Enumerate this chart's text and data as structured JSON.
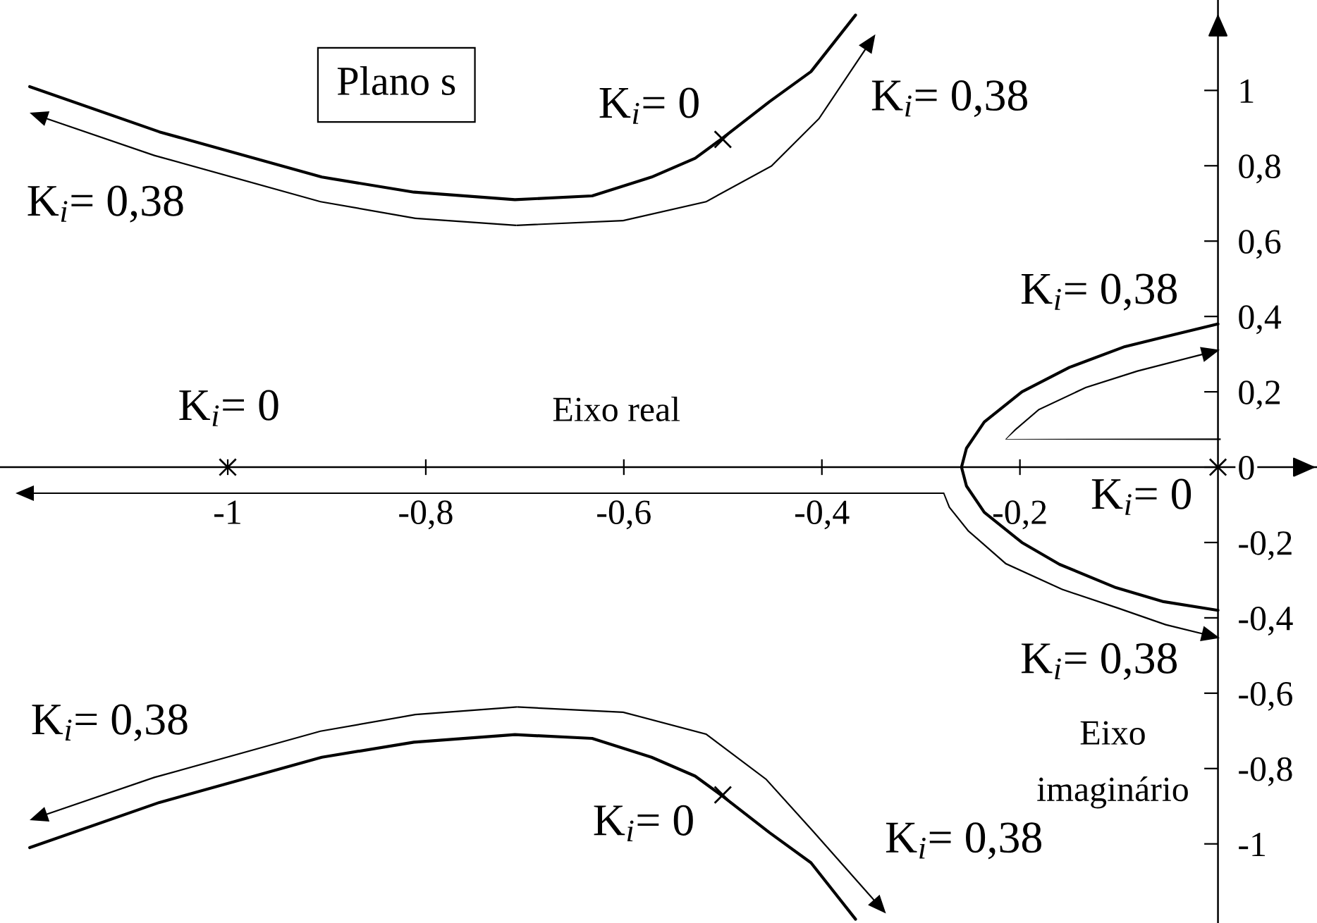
{
  "chart_data": {
    "type": "line",
    "title": "Plano s",
    "xlabel": "Eixo real",
    "ylabel": "Eixo\nimaginário",
    "xlim": [
      -1.23,
      0.1
    ],
    "ylim": [
      -1.21,
      1.24
    ],
    "xticks": [
      -1,
      {
        "value": -0.8,
        "label": "-0,8"
      },
      {
        "value": -0.6,
        "label": "-0,6"
      },
      {
        "value": -0.4,
        "label": "-0,4"
      },
      {
        "value": -0.2,
        "label": "-0,2"
      }
    ],
    "yticks": [
      -1,
      {
        "value": -0.8,
        "label": "-0,8"
      },
      {
        "value": -0.6,
        "label": "-0,6"
      },
      {
        "value": -0.4,
        "label": "-0,4"
      },
      {
        "value": -0.2,
        "label": "-0,2"
      },
      0,
      {
        "value": 0.2,
        "label": "0,2"
      },
      {
        "value": 0.4,
        "label": "0,4"
      },
      {
        "value": 0.6,
        "label": "0,6"
      },
      {
        "value": 0.8,
        "label": "0,8"
      },
      1
    ],
    "series": [
      {
        "color": "#000000",
        "x": [
          -1.2,
          -1.069,
          -0.905,
          -0.812,
          -0.71,
          -0.632,
          -0.572,
          -0.528,
          -0.502,
          -0.453,
          -0.411,
          -0.366
        ],
        "values": [
          1.01,
          0.89,
          0.77,
          0.73,
          0.71,
          0.72,
          0.77,
          0.82,
          0.87,
          0.97,
          1.05,
          1.2
        ]
      },
      {
        "color": "#000000",
        "x": [
          0,
          -0.055,
          -0.094,
          -0.15,
          -0.198,
          -0.236,
          -0.254,
          -0.259,
          -0.254,
          -0.236,
          -0.198,
          -0.16,
          -0.103,
          -0.055,
          0
        ],
        "values": [
          0.38,
          0.345,
          0.32,
          0.265,
          0.2,
          0.12,
          0.05,
          0,
          -0.05,
          -0.12,
          -0.2,
          -0.258,
          -0.32,
          -0.357,
          -0.38
        ]
      },
      {
        "color": "#000000",
        "x": [
          -1.2,
          -1.069,
          -0.905,
          -0.812,
          -0.71,
          -0.632,
          -0.572,
          -0.528,
          -0.502,
          -0.453,
          -0.411,
          -0.366
        ],
        "values": [
          -1.01,
          -0.89,
          -0.77,
          -0.73,
          -0.71,
          -0.72,
          -0.77,
          -0.82,
          -0.87,
          -0.97,
          -1.05,
          -1.2
        ]
      },
      {
        "type": "scatter",
        "color": "#000000",
        "marker": "cross",
        "x": [
          -1,
          -0.5,
          -0.5,
          0
        ],
        "values": [
          0,
          0.87,
          -0.87,
          0
        ]
      }
    ],
    "annotations": [
      {
        "text": "K$_{i}$= 0",
        "x": -0.5,
        "y": 0.87
      },
      {
        "text": "K$_{i}$= 0,38",
        "x": -0.366,
        "y": 1.2
      },
      {
        "text": "K$_{i}$= 0,38",
        "x": -1.2,
        "y": 1.01
      },
      {
        "text": "K$_{i}$= 0,38",
        "x": 0,
        "y": 0.38
      },
      {
        "text": "K$_{i}$= 0",
        "x": -1,
        "y": 0
      },
      {
        "text": "K$_{i}$= 0",
        "x": 0,
        "y": 0
      },
      {
        "text": "K$_{i}$= 0,38",
        "x": 0,
        "y": -0.38
      },
      {
        "text": "K$_{i}$= 0,38",
        "x": -1.2,
        "y": -1.01
      },
      {
        "text": "K$_{i}$= 0",
        "x": -0.5,
        "y": -0.87
      },
      {
        "text": "K$_{i}$= 0,38",
        "x": -0.366,
        "y": -1.2
      }
    ]
  }
}
